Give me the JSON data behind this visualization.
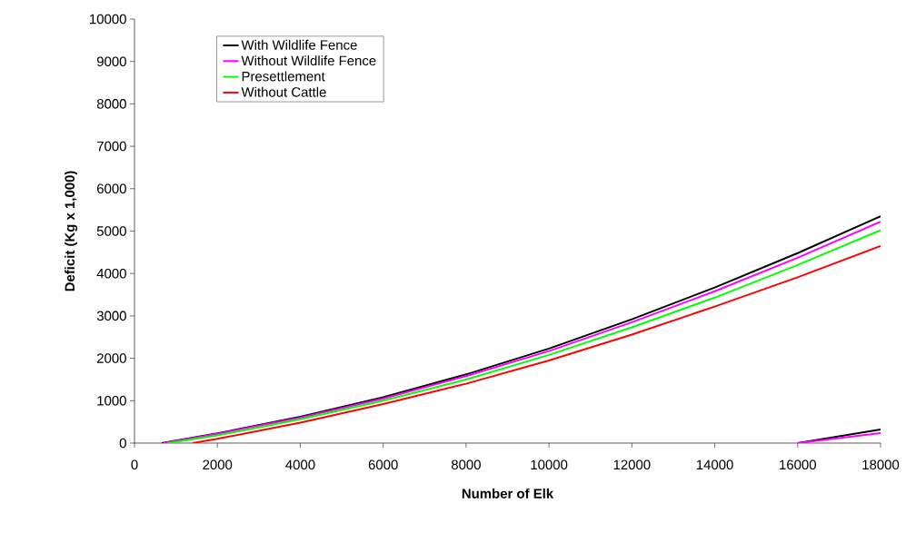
{
  "chart_data": {
    "type": "line",
    "xlabel": "Number of Elk",
    "ylabel": "Deficit (Kg x 1,000)",
    "xlim": [
      0,
      18000
    ],
    "ylim": [
      0,
      10000
    ],
    "xticks": [
      0,
      2000,
      4000,
      6000,
      8000,
      10000,
      12000,
      14000,
      16000,
      18000
    ],
    "yticks": [
      0,
      1000,
      2000,
      3000,
      4000,
      5000,
      6000,
      7000,
      8000,
      9000,
      10000
    ],
    "grid": false,
    "legend": "top left",
    "marker": "none",
    "line_style": "solid",
    "series": [
      {
        "name": "With Wildlife Fence",
        "color": "#000000",
        "x": [
          660,
          2000,
          4000,
          6000,
          8000,
          10000,
          12000,
          14000,
          16000,
          18000
        ],
        "values": [
          0,
          230,
          620,
          1080,
          1620,
          2230,
          2920,
          3670,
          4480,
          5350
        ]
      },
      {
        "name": "Without Wildlife Fence",
        "color": "#ff00ff",
        "x": [
          700,
          2000,
          4000,
          6000,
          8000,
          10000,
          12000,
          14000,
          16000,
          18000
        ],
        "values": [
          0,
          220,
          600,
          1050,
          1580,
          2170,
          2850,
          3580,
          4370,
          5220
        ]
      },
      {
        "name": "Presettlement",
        "color": "#00ff00",
        "x": [
          800,
          2000,
          4000,
          6000,
          8000,
          10000,
          12000,
          14000,
          16000,
          18000
        ],
        "values": [
          0,
          180,
          560,
          1000,
          1500,
          2080,
          2730,
          3430,
          4200,
          5020
        ]
      },
      {
        "name": "Without Cattle",
        "color": "#ff0000",
        "x": [
          1400,
          2000,
          4000,
          6000,
          8000,
          10000,
          12000,
          14000,
          16000,
          18000
        ],
        "values": [
          0,
          100,
          480,
          920,
          1400,
          1950,
          2560,
          3220,
          3910,
          4650
        ]
      },
      {
        "color": "#000000",
        "x": [
          16000,
          18000
        ],
        "values": [
          0,
          320
        ]
      },
      {
        "color": "#ff00ff",
        "x": [
          16000,
          18000
        ],
        "values": [
          0,
          235
        ]
      }
    ]
  }
}
